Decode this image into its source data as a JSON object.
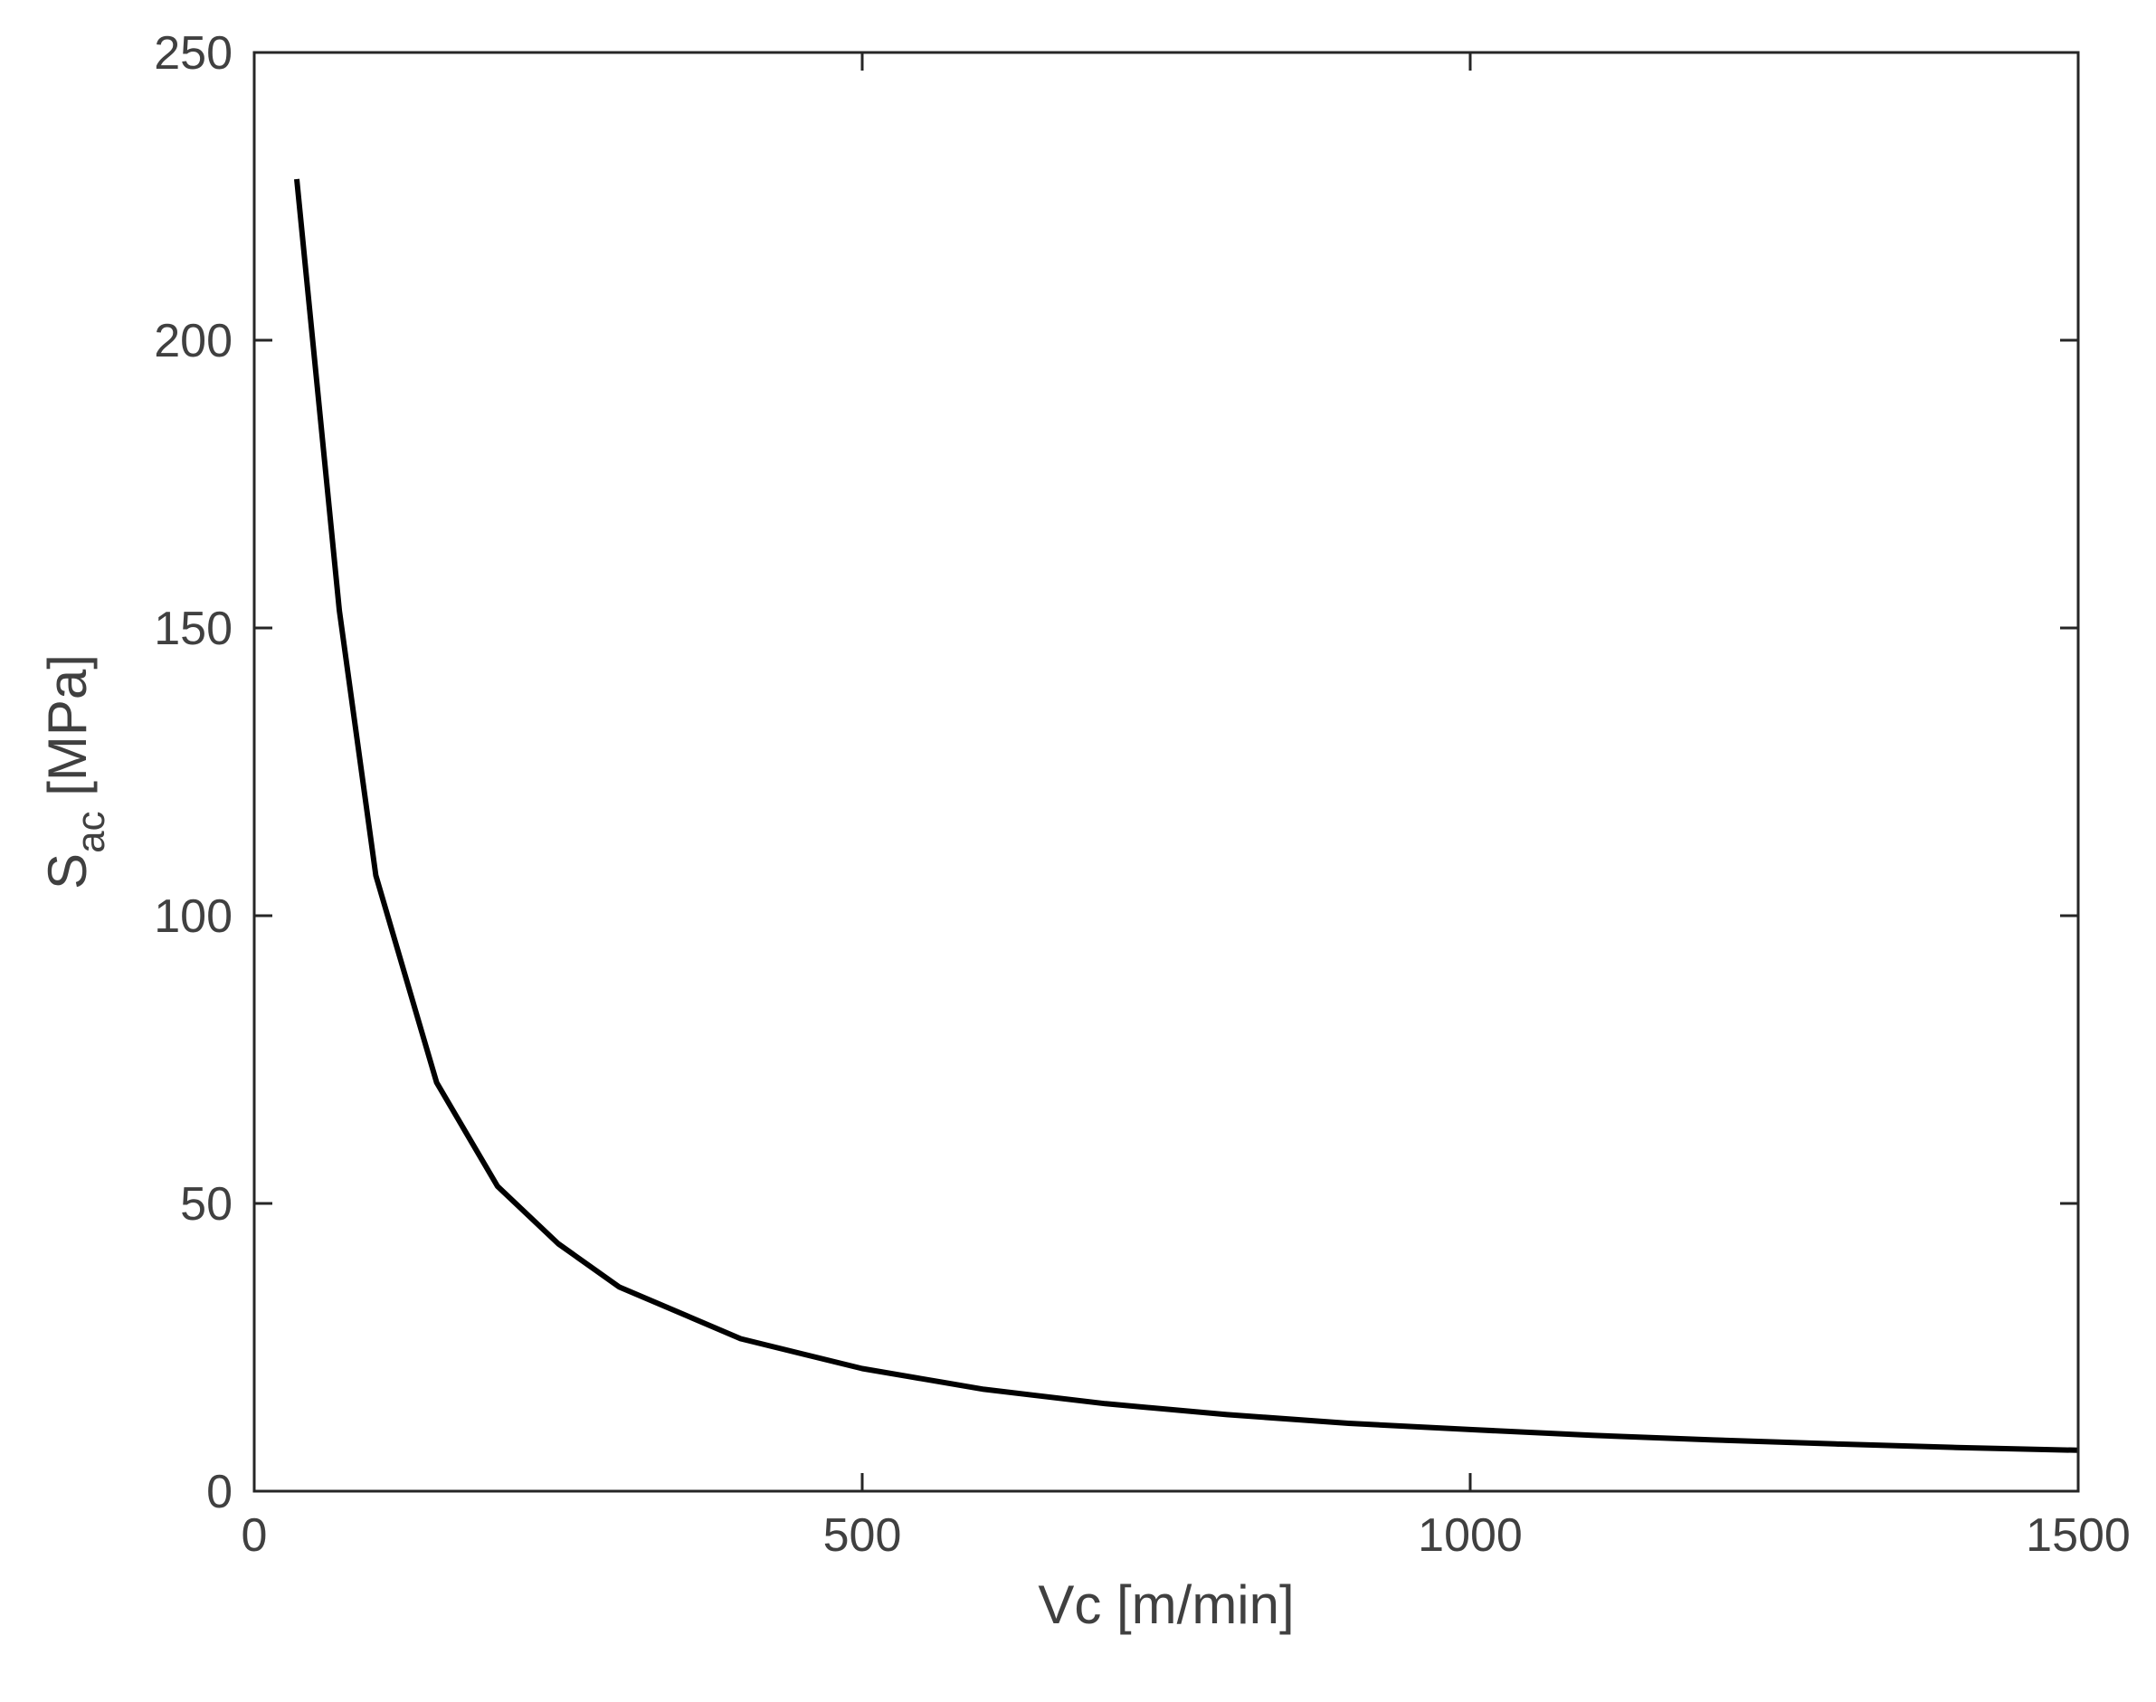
{
  "chart_data": {
    "type": "line",
    "xlabel": "Vc [m/min]",
    "ylabel": {
      "main": "S",
      "subscript": "ac",
      "unit": " [MPa]"
    },
    "xlim": [
      0,
      1500
    ],
    "ylim": [
      0,
      250
    ],
    "xticks": [
      0,
      500,
      1000,
      1500
    ],
    "yticks": [
      0,
      50,
      100,
      150,
      200,
      250
    ],
    "grid": false,
    "legend": "none",
    "line_color": "#000000",
    "series": [
      {
        "x": [
          35,
          70,
          100,
          150,
          200,
          250,
          300,
          400,
          500,
          600,
          700,
          800,
          900,
          1000,
          1100,
          1200,
          1300,
          1400,
          1500
        ],
        "y": [
          228,
          153,
          107,
          71,
          53,
          43,
          35.5,
          26.5,
          21.3,
          17.7,
          15.2,
          13.3,
          11.8,
          10.7,
          9.7,
          8.9,
          8.2,
          7.6,
          7.1
        ]
      }
    ]
  }
}
